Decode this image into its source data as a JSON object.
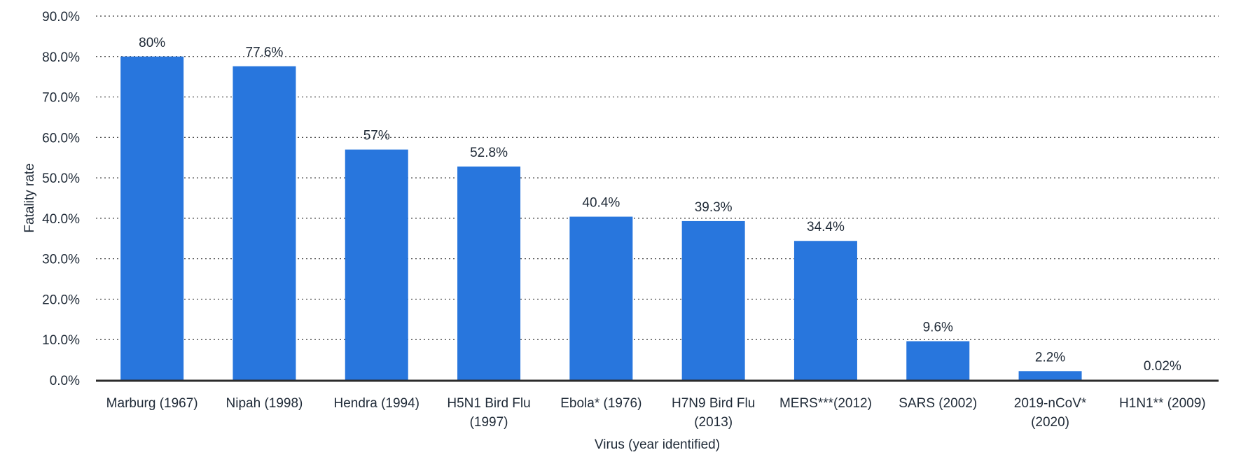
{
  "chart_data": {
    "type": "bar",
    "xlabel": "Virus (year identified)",
    "ylabel": "Fatality rate",
    "ylim": [
      0,
      90
    ],
    "yticks": [
      0,
      10,
      20,
      30,
      40,
      50,
      60,
      70,
      80,
      90
    ],
    "ytick_labels": [
      "0.0%",
      "10.0%",
      "20.0%",
      "30.0%",
      "40.0%",
      "50.0%",
      "60.0%",
      "70.0%",
      "80.0%",
      "90.0%"
    ],
    "grid": "horizontal dotted",
    "bar_color": "#2876dd",
    "categories": [
      [
        "Marburg (1967)"
      ],
      [
        "Nipah (1998)"
      ],
      [
        "Hendra (1994)"
      ],
      [
        "H5N1 Bird Flu",
        "(1997)"
      ],
      [
        "Ebola* (1976)"
      ],
      [
        "H7N9 Bird Flu",
        "(2013)"
      ],
      [
        "MERS***(2012)"
      ],
      [
        "SARS (2002)"
      ],
      [
        "2019-nCoV*",
        "(2020)"
      ],
      [
        "H1N1** (2009)"
      ]
    ],
    "values": [
      80,
      77.6,
      57,
      52.8,
      40.4,
      39.3,
      34.4,
      9.6,
      2.2,
      0.02
    ],
    "value_labels": [
      "80%",
      "77.6%",
      "57%",
      "52.8%",
      "40.4%",
      "39.3%",
      "34.4%",
      "9.6%",
      "2.2%",
      "0.02%"
    ]
  }
}
